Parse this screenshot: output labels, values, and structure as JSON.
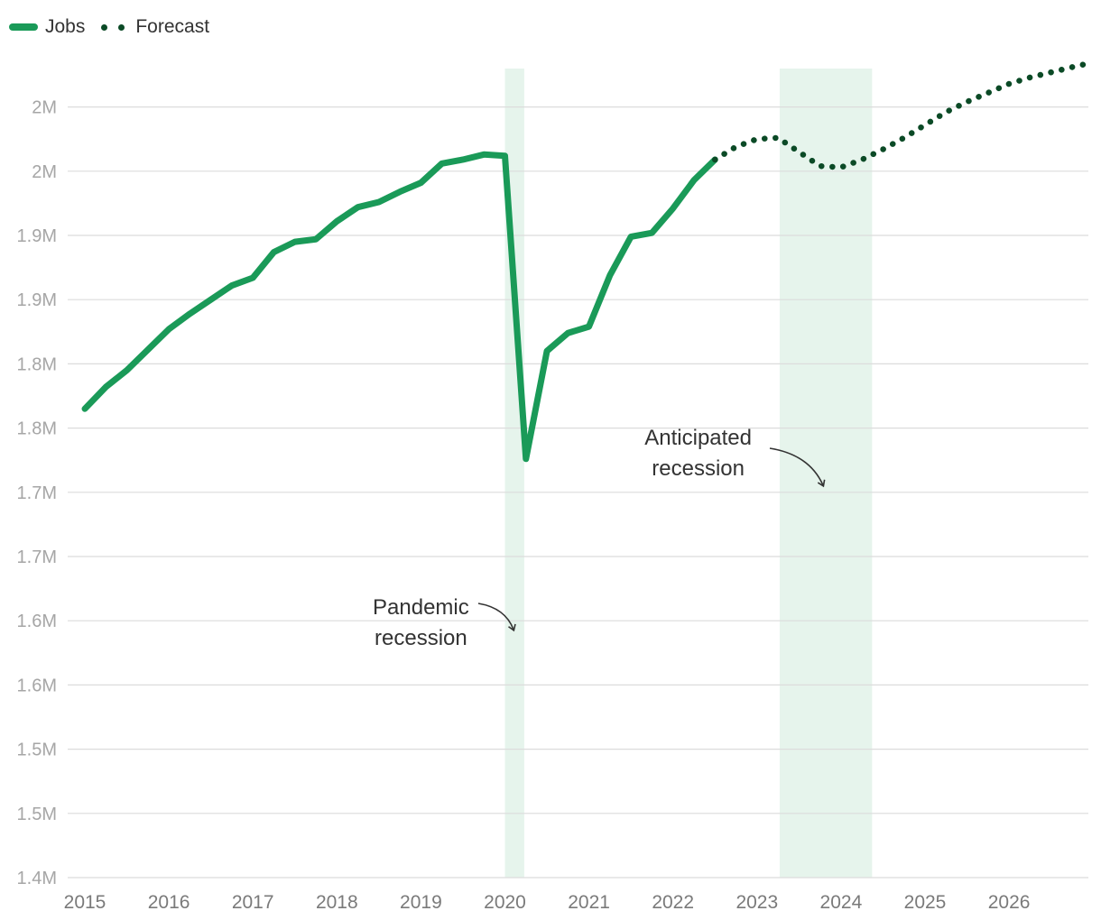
{
  "chart_data": {
    "type": "line",
    "title": "",
    "xlabel": "",
    "ylabel": "",
    "ylim": [
      1.4,
      2.05
    ],
    "xlim": [
      2015,
      2026.95
    ],
    "y_ticks": [
      {
        "value": 1.4,
        "label": "1.4M"
      },
      {
        "value": 1.45,
        "label": "1.5M"
      },
      {
        "value": 1.5,
        "label": "1.5M"
      },
      {
        "value": 1.55,
        "label": "1.6M"
      },
      {
        "value": 1.6,
        "label": "1.6M"
      },
      {
        "value": 1.65,
        "label": "1.7M"
      },
      {
        "value": 1.7,
        "label": "1.7M"
      },
      {
        "value": 1.75,
        "label": "1.8M"
      },
      {
        "value": 1.8,
        "label": "1.8M"
      },
      {
        "value": 1.85,
        "label": "1.9M"
      },
      {
        "value": 1.9,
        "label": "1.9M"
      },
      {
        "value": 1.95,
        "label": "2M"
      },
      {
        "value": 2.0,
        "label": "2M"
      }
    ],
    "x_ticks": [
      {
        "value": 2015,
        "label": "2015"
      },
      {
        "value": 2016,
        "label": "2016"
      },
      {
        "value": 2017,
        "label": "2017"
      },
      {
        "value": 2018,
        "label": "2018"
      },
      {
        "value": 2019,
        "label": "2019"
      },
      {
        "value": 2020,
        "label": "2020"
      },
      {
        "value": 2021,
        "label": "2021"
      },
      {
        "value": 2022,
        "label": "2022"
      },
      {
        "value": 2023,
        "label": "2023"
      },
      {
        "value": 2024,
        "label": "2024"
      },
      {
        "value": 2025,
        "label": "2025"
      },
      {
        "value": 2026,
        "label": "2026"
      }
    ],
    "legend": [
      {
        "name": "Jobs",
        "style": "solid",
        "color": "#1a9a58"
      },
      {
        "name": "Forecast",
        "style": "dotted",
        "color": "#0b4a26"
      }
    ],
    "shaded_regions": [
      {
        "name": "Pandemic recession",
        "from": 2020.0,
        "to": 2020.23,
        "color": "#e6f4ec"
      },
      {
        "name": "Anticipated recession",
        "from": 2023.27,
        "to": 2024.37,
        "color": "#e6f4ec"
      }
    ],
    "annotations": [
      {
        "lines": [
          "Pandemic",
          "recession"
        ],
        "x": 2019.0,
        "y": 1.605
      },
      {
        "lines": [
          "Anticipated",
          "recession"
        ],
        "x": 2022.3,
        "y": 1.737
      }
    ],
    "series": [
      {
        "name": "Jobs",
        "x": [
          2015,
          2015.25,
          2015.5,
          2015.75,
          2016,
          2016.25,
          2016.5,
          2016.75,
          2017,
          2017.25,
          2017.5,
          2017.75,
          2018,
          2018.25,
          2018.5,
          2018.75,
          2019,
          2019.25,
          2019.5,
          2019.75,
          2020,
          2020.25,
          2020.5,
          2020.75,
          2021,
          2021.25,
          2021.5,
          2021.75,
          2022,
          2022.25,
          2022.5
        ],
        "values": [
          1.765,
          1.782,
          1.795,
          1.811,
          1.827,
          1.839,
          1.85,
          1.861,
          1.867,
          1.887,
          1.895,
          1.897,
          1.911,
          1.922,
          1.926,
          1.934,
          1.941,
          1.956,
          1.959,
          1.963,
          1.962,
          1.726,
          1.81,
          1.824,
          1.829,
          1.869,
          1.899,
          1.902,
          1.921,
          1.943,
          1.959
        ]
      },
      {
        "name": "Forecast",
        "x": [
          2022.5,
          2022.75,
          2023.0,
          2023.25,
          2023.5,
          2023.75,
          2024.0,
          2024.25,
          2024.5,
          2024.75,
          2025.0,
          2025.25,
          2025.5,
          2025.75,
          2026.0,
          2026.25,
          2026.5,
          2026.75,
          2026.95
        ],
        "values": [
          1.959,
          1.969,
          1.975,
          1.976,
          1.965,
          1.954,
          1.953,
          1.959,
          1.967,
          1.976,
          1.986,
          1.996,
          2.004,
          2.011,
          2.018,
          2.023,
          2.027,
          2.031,
          2.034
        ]
      }
    ]
  }
}
